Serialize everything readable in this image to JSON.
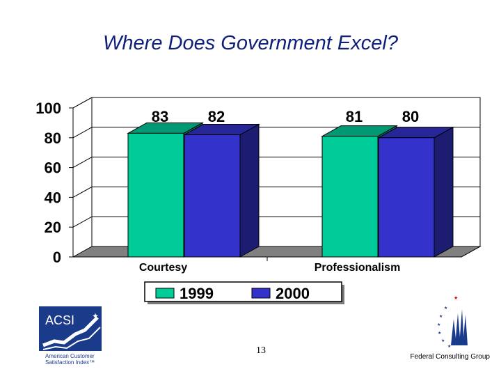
{
  "slide": {
    "title": "Where Does Government Excel?",
    "page_number": "13",
    "organization": "Federal Consulting Group"
  },
  "logos": {
    "acsi": {
      "abbreviation": "ACSI",
      "line1": "American Customer",
      "line2": "Satisfaction Index™"
    }
  },
  "colors": {
    "title": "#0f1f7a",
    "series_1999": "#00cc99",
    "series_2000": "#3333cc",
    "floor": "#808080",
    "acsi_blue": "#1a3a8a"
  },
  "chart_data": {
    "type": "bar",
    "style": "3d",
    "categories": [
      "Courtesy",
      "Professionalism"
    ],
    "series": [
      {
        "name": "1999",
        "values": [
          83,
          81
        ],
        "color": "#00cc99"
      },
      {
        "name": "2000",
        "values": [
          82,
          80
        ],
        "color": "#3333cc"
      }
    ],
    "ylim": [
      0,
      100
    ],
    "yticks": [
      "0",
      "20",
      "40",
      "60",
      "80",
      "100"
    ],
    "grid": true,
    "data_labels": true,
    "legend": "bottom-center"
  }
}
